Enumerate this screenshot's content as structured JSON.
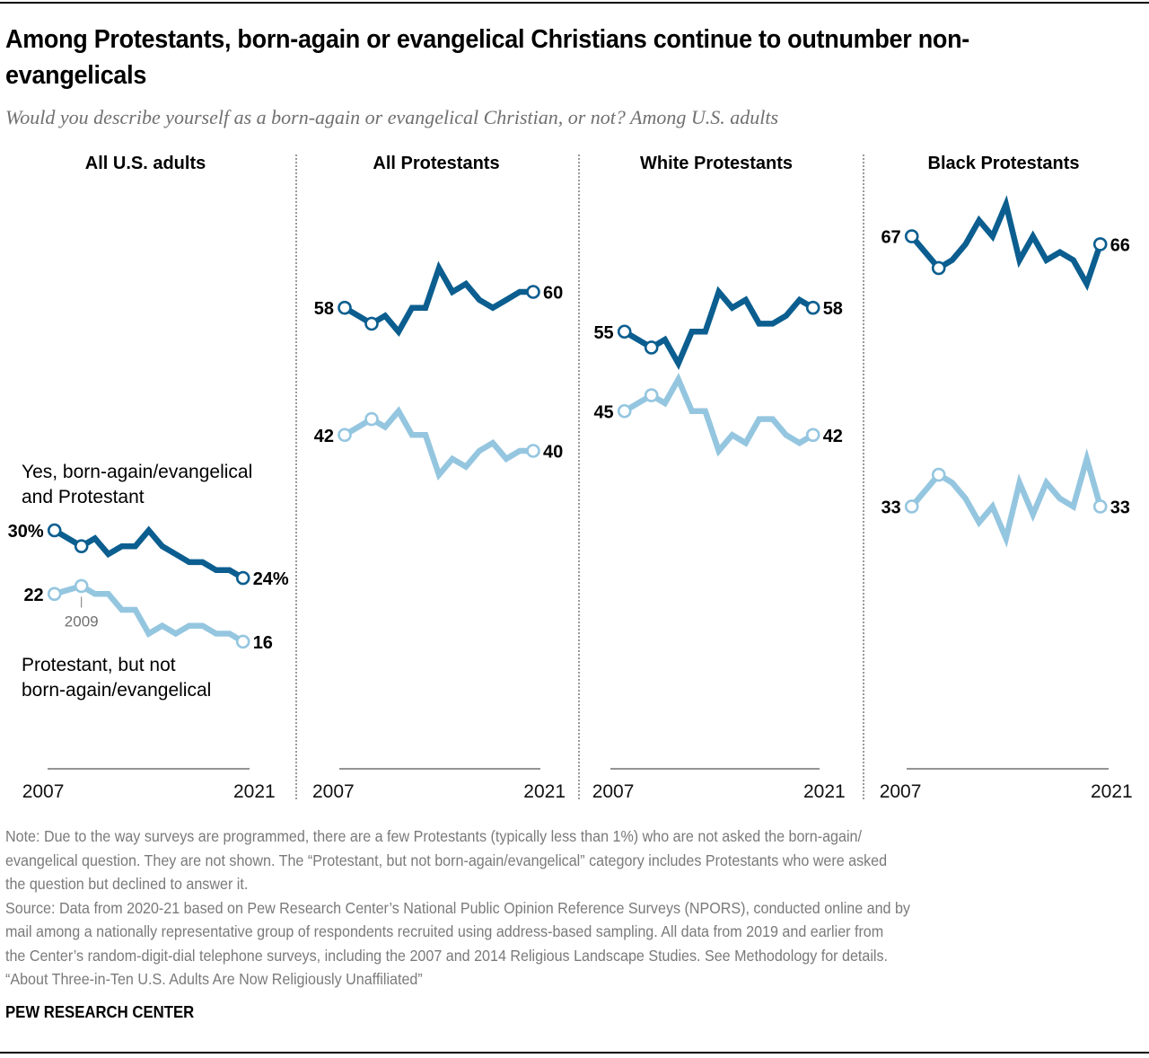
{
  "header": {
    "title": "Among Protestants, born-again or evangelical Christians continue to outnumber non-evangelicals",
    "subtitle": "Would you describe yourself as a born-again or evangelical Christian, or not? Among U.S. adults"
  },
  "legend": {
    "evangelical": "Yes, born-again/evangelical and Protestant",
    "evangelical_line1": "Yes, born-again/evangelical",
    "evangelical_line2": "and Protestant",
    "non_evangelical_line1": "Protestant, but not",
    "non_evangelical_line2": "born-again/evangelical",
    "annotation_2009": "2009"
  },
  "colors": {
    "evangelical": "#0b5e8f",
    "non_evangelical": "#95c6e0"
  },
  "chart_data": {
    "type": "line",
    "title": "Among Protestants, born-again or evangelical Christians continue to outnumber non-evangelicals",
    "subtitle": "Would you describe yourself as a born-again or evangelical Christian, or not? Among U.S. adults",
    "x": [
      2007,
      2009,
      2010,
      2011,
      2012,
      2013,
      2014,
      2015,
      2016,
      2017,
      2018,
      2019,
      2020,
      2021
    ],
    "x_tick_labels": [
      "2007",
      "2021"
    ],
    "unit": "%",
    "grid": false,
    "panels": [
      {
        "title": "All U.S. adults",
        "series": [
          {
            "name": "Yes, born-again/evangelical and Protestant",
            "values": [
              30,
              28,
              29,
              27,
              28,
              28,
              30,
              28,
              27,
              26,
              26,
              25,
              25,
              24
            ],
            "start_label": "30%",
            "end_label": "24%"
          },
          {
            "name": "Protestant, but not born-again/evangelical",
            "values": [
              22,
              23,
              22,
              22,
              20,
              20,
              17,
              18,
              17,
              18,
              18,
              17,
              17,
              16
            ],
            "start_label": "22",
            "end_label": "16"
          }
        ]
      },
      {
        "title": "All Protestants",
        "series": [
          {
            "name": "Yes, born-again/evangelical and Protestant",
            "values": [
              58,
              56,
              57,
              55,
              58,
              58,
              63,
              60,
              61,
              59,
              58,
              59,
              60,
              60
            ],
            "start_label": "58",
            "end_label": "60"
          },
          {
            "name": "Protestant, but not born-again/evangelical",
            "values": [
              42,
              44,
              43,
              45,
              42,
              42,
              37,
              39,
              38,
              40,
              41,
              39,
              40,
              40
            ],
            "start_label": "42",
            "end_label": "40"
          }
        ]
      },
      {
        "title": "White Protestants",
        "series": [
          {
            "name": "Yes, born-again/evangelical and Protestant",
            "values": [
              55,
              53,
              54,
              51,
              55,
              55,
              60,
              58,
              59,
              56,
              56,
              57,
              59,
              58
            ],
            "start_label": "55",
            "end_label": "58"
          },
          {
            "name": "Protestant, but not born-again/evangelical",
            "values": [
              45,
              47,
              46,
              49,
              45,
              45,
              40,
              42,
              41,
              44,
              44,
              42,
              41,
              42
            ],
            "start_label": "45",
            "end_label": "42"
          }
        ]
      },
      {
        "title": "Black Protestants",
        "series": [
          {
            "name": "Yes, born-again/evangelical and Protestant",
            "values": [
              67,
              63,
              64,
              66,
              69,
              67,
              71,
              64,
              67,
              64,
              65,
              64,
              61,
              66
            ],
            "start_label": "67",
            "end_label": "66"
          },
          {
            "name": "Protestant, but not born-again/evangelical",
            "values": [
              33,
              37,
              36,
              34,
              31,
              33,
              29,
              36,
              32,
              36,
              34,
              33,
              39,
              33
            ],
            "start_label": "33",
            "end_label": "33"
          }
        ]
      }
    ],
    "ylim": [
      0,
      75
    ]
  },
  "footer": {
    "note_lines": [
      "Note: Due to the way surveys are programmed, there are a few Protestants (typically less than 1%) who are not asked the born-again/",
      "evangelical question. They are not shown. The “Protestant, but not born-again/evangelical” category includes Protestants who were asked",
      "the question but declined to answer it."
    ],
    "source_lines": [
      "Source: Data from 2020-21 based on Pew Research Center’s National Public Opinion Reference Surveys (NPORS), conducted online and by",
      "mail among a nationally representative group of respondents recruited using address-based sampling. All data from 2019 and earlier from",
      "the Center’s random-digit-dial telephone surveys, including the 2007 and 2014 Religious Landscape Studies. See Methodology for details.",
      "“About Three-in-Ten U.S. Adults Are Now Religiously Unaffiliated”"
    ],
    "brand": "PEW RESEARCH CENTER"
  }
}
